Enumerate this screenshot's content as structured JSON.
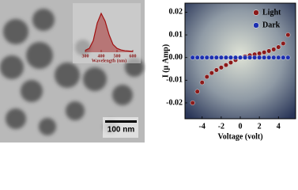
{
  "image": {
    "scale_bar": "100 nm"
  },
  "chart_data": [
    {
      "type": "line",
      "xlabel": "Wavelength (nm)",
      "x": [
        300,
        325,
        350,
        375,
        400,
        425,
        450,
        475,
        500,
        525,
        550,
        575,
        600
      ],
      "series": [
        {
          "name": null,
          "color": "#a01010",
          "values": [
            0.05,
            0.1,
            0.3,
            0.75,
            1.0,
            0.8,
            0.45,
            0.2,
            0.1,
            0.06,
            0.04,
            0.03,
            0.02
          ]
        }
      ],
      "xlim": [
        280,
        620
      ],
      "ylim": [
        0,
        1.1
      ],
      "xticks": [
        300,
        400,
        500,
        600
      ]
    },
    {
      "type": "scatter",
      "xlabel": "Voltage (volt)",
      "ylabel": "I (μ Amp)",
      "x": [
        -5,
        -4.5,
        -4,
        -3.5,
        -3,
        -2.5,
        -2,
        -1.5,
        -1,
        -0.5,
        0,
        0.5,
        1,
        1.5,
        2,
        2.5,
        3,
        3.5,
        4,
        4.5,
        5
      ],
      "series": [
        {
          "name": "Light",
          "color": "#8b1a1a",
          "values": [
            -0.02,
            -0.015,
            -0.011,
            -0.0085,
            -0.0068,
            -0.0055,
            -0.0044,
            -0.0033,
            -0.0022,
            -0.0011,
            0,
            0.0005,
            0.001,
            0.0014,
            0.0018,
            0.0023,
            0.0029,
            0.0036,
            0.0046,
            0.0062,
            0.01
          ]
        },
        {
          "name": "Dark",
          "color": "#1c2fb0",
          "values": [
            0,
            0,
            0,
            0,
            0,
            0,
            0,
            0,
            0,
            0,
            0,
            0,
            0,
            0,
            0,
            0,
            0,
            0,
            0,
            0,
            0
          ]
        }
      ],
      "xlim": [
        -5.8,
        5.8
      ],
      "ylim": [
        -0.027,
        0.024
      ],
      "xticks": [
        -4,
        -2,
        0,
        2,
        4
      ],
      "yticks": [
        -0.02,
        -0.01,
        {
          "value": 0,
          "label": "0.00"
        },
        0.01,
        0.02
      ],
      "legend": "upper right"
    }
  ]
}
